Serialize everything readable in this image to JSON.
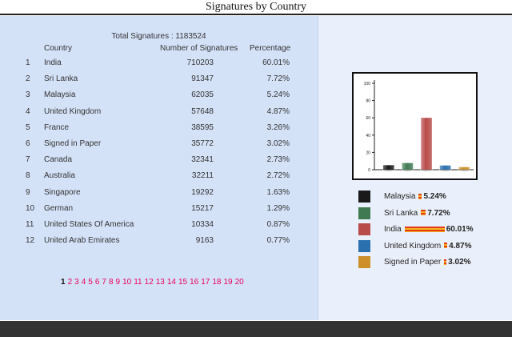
{
  "page": {
    "title": "Signatures by Country"
  },
  "table": {
    "total_label": "Total Signatures : 1183524",
    "headers": {
      "country": "Country",
      "number": "Number of Signatures",
      "percentage": "Percentage"
    },
    "rows": [
      {
        "rank": "1",
        "country": "India",
        "number": "710203",
        "percentage": "60.01%"
      },
      {
        "rank": "2",
        "country": "Sri Lanka",
        "number": "91347",
        "percentage": "7.72%"
      },
      {
        "rank": "3",
        "country": "Malaysia",
        "number": "62035",
        "percentage": "5.24%"
      },
      {
        "rank": "4",
        "country": "United Kingdom",
        "number": "57648",
        "percentage": "4.87%"
      },
      {
        "rank": "5",
        "country": "France",
        "number": "38595",
        "percentage": "3.26%"
      },
      {
        "rank": "6",
        "country": "Signed in Paper",
        "number": "35772",
        "percentage": "3.02%"
      },
      {
        "rank": "7",
        "country": "Canada",
        "number": "32341",
        "percentage": "2.73%"
      },
      {
        "rank": "8",
        "country": "Australia",
        "number": "32211",
        "percentage": "2.72%"
      },
      {
        "rank": "9",
        "country": "Singapore",
        "number": "19292",
        "percentage": "1.63%"
      },
      {
        "rank": "10",
        "country": "German",
        "number": "15217",
        "percentage": "1.29%"
      },
      {
        "rank": "11",
        "country": "United States Of America",
        "number": "10334",
        "percentage": "0.87%"
      },
      {
        "rank": "12",
        "country": "United Arab Emirates",
        "number": "9163",
        "percentage": "0.77%"
      }
    ]
  },
  "pagination": {
    "current": "1",
    "pages": [
      "1",
      "2",
      "3",
      "4",
      "5",
      "6",
      "7",
      "8",
      "9",
      "10",
      "11",
      "12",
      "13",
      "14",
      "15",
      "16",
      "17",
      "18",
      "19",
      "20"
    ]
  },
  "chart_data": {
    "type": "bar",
    "categories": [
      "Malaysia",
      "Sri Lanka",
      "India",
      "United Kingdom",
      "Signed in Paper"
    ],
    "values": [
      5.24,
      7.72,
      60.01,
      4.87,
      3.02
    ],
    "colors": [
      "#1a1a1a",
      "#3f7a52",
      "#b84a4a",
      "#2a6fae",
      "#cc8f2a"
    ],
    "ylim": [
      0,
      100
    ],
    "yticks": [
      "0",
      "20",
      "40",
      "60",
      "80",
      "100"
    ],
    "grid": false
  },
  "legend": {
    "items": [
      {
        "name": "Malaysia",
        "pct": "5.24%",
        "value": 5.24,
        "color": "#1a1a1a"
      },
      {
        "name": "Sri Lanka",
        "pct": "7.72%",
        "value": 7.72,
        "color": "#3f7a52"
      },
      {
        "name": "India",
        "pct": "60.01%",
        "value": 60.01,
        "color": "#b84a4a"
      },
      {
        "name": "United Kingdom",
        "pct": "4.87%",
        "value": 4.87,
        "color": "#2a6fae"
      },
      {
        "name": "Signed in Paper",
        "pct": "3.02%",
        "value": 3.02,
        "color": "#cc8f2a"
      }
    ]
  },
  "colors": {
    "link": "#e8005a",
    "panel_left": "#d4e2f8",
    "panel_right": "#eaf0fb",
    "footer": "#333333"
  }
}
